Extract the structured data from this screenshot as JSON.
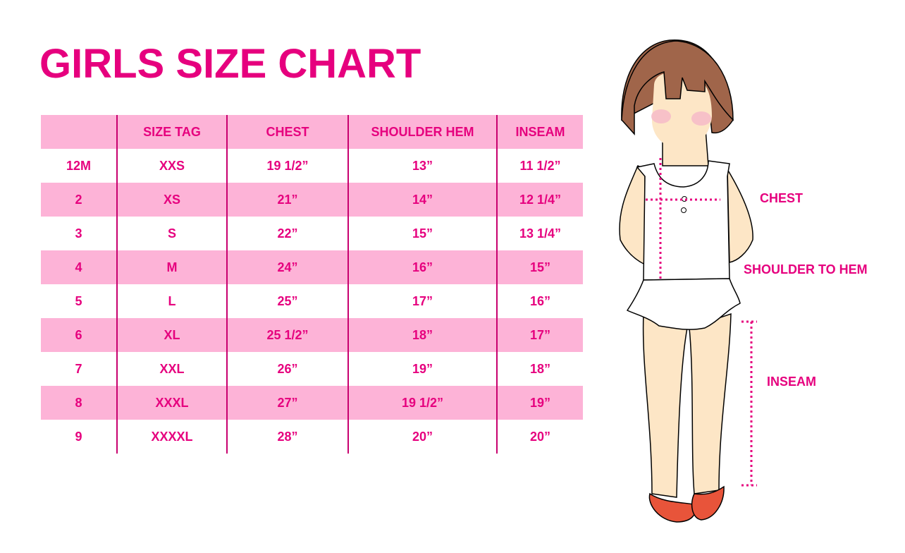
{
  "title": "GIRLS SIZE CHART",
  "table": {
    "headers": [
      "",
      "SIZE TAG",
      "CHEST",
      "SHOULDER HEM",
      "INSEAM"
    ],
    "rows": [
      [
        "12M",
        "XXS",
        "19 1/2”",
        "13”",
        "11 1/2”"
      ],
      [
        "2",
        "XS",
        "21”",
        "14”",
        "12 1/4”"
      ],
      [
        "3",
        "S",
        "22”",
        "15”",
        "13 1/4”"
      ],
      [
        "4",
        "M",
        "24”",
        "16”",
        "15”"
      ],
      [
        "5",
        "L",
        "25”",
        "17”",
        "16”"
      ],
      [
        "6",
        "XL",
        "25 1/2”",
        "18”",
        "17”"
      ],
      [
        "7",
        "XXL",
        "26”",
        "19”",
        "18”"
      ],
      [
        "8",
        "XXXL",
        "27”",
        "19 1/2”",
        "19”"
      ],
      [
        "9",
        "XXXXL",
        "28”",
        "20”",
        "20”"
      ]
    ]
  },
  "illustration": {
    "labels": {
      "chest": "CHEST",
      "shoulder_to_hem": "SHOULDER TO HEM",
      "inseam": "INSEAM"
    }
  },
  "colors": {
    "accent": "#e6007e",
    "row_pink": "#fdb3d7",
    "hair": "#a0654a",
    "skin": "#fde6c6",
    "shoes": "#e8543a"
  }
}
